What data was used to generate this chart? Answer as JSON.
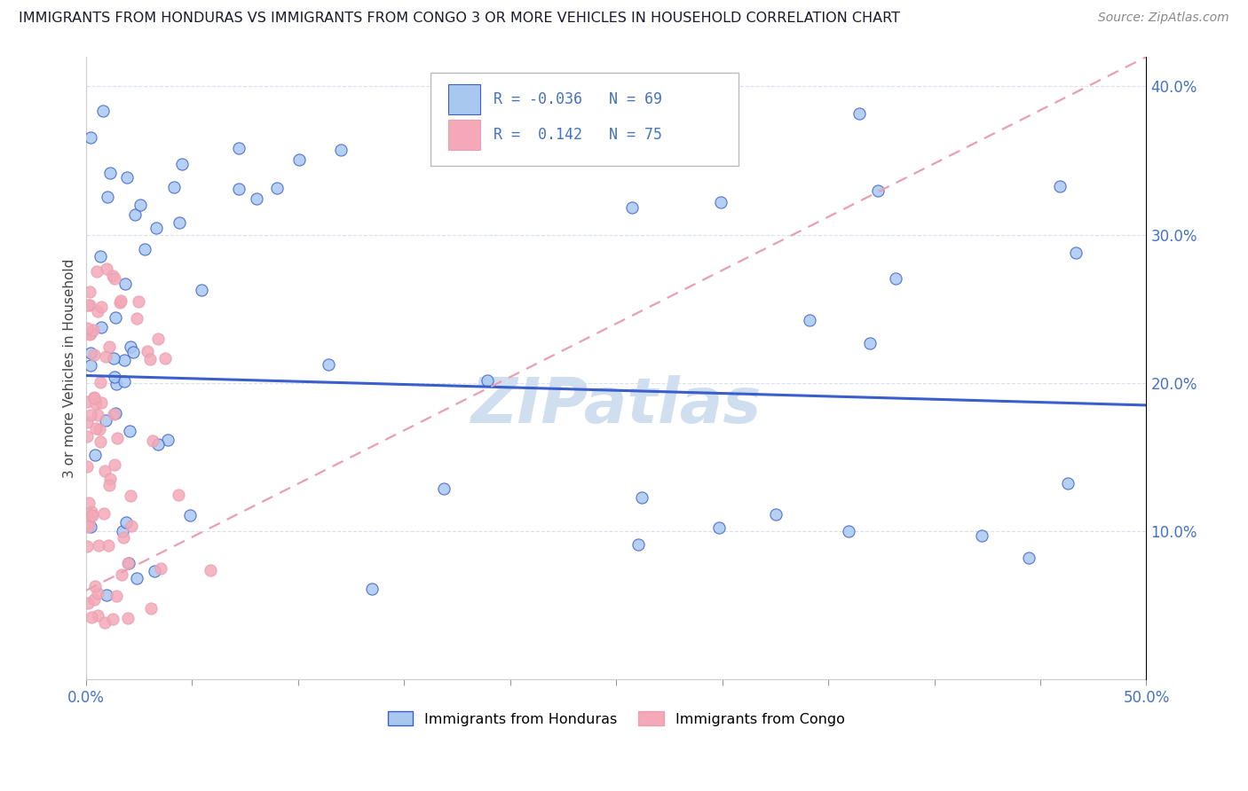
{
  "title": "IMMIGRANTS FROM HONDURAS VS IMMIGRANTS FROM CONGO 3 OR MORE VEHICLES IN HOUSEHOLD CORRELATION CHART",
  "source": "Source: ZipAtlas.com",
  "ylabel": "3 or more Vehicles in Household",
  "legend_r_honduras": "R = -0.036",
  "legend_n_honduras": "N = 69",
  "legend_r_congo": "R =  0.142",
  "legend_n_congo": "N = 75",
  "color_honduras": "#a8c8f0",
  "color_congo": "#f4a8b8",
  "color_line_honduras": "#3a5fcd",
  "color_line_congo": "#e8a0b0",
  "color_watermark": "#d0dff0",
  "background_color": "#ffffff",
  "xlim": [
    0.0,
    50.0
  ],
  "ylim": [
    0.0,
    42.0
  ],
  "hon_line_start_y": 20.5,
  "hon_line_end_y": 18.5,
  "con_line_start_y": 6.0,
  "con_line_end_y": 42.0,
  "grid_color": "#d0d8e8",
  "tick_color": "#4472c4",
  "title_color": "#1a1a2e",
  "source_color": "#888888"
}
